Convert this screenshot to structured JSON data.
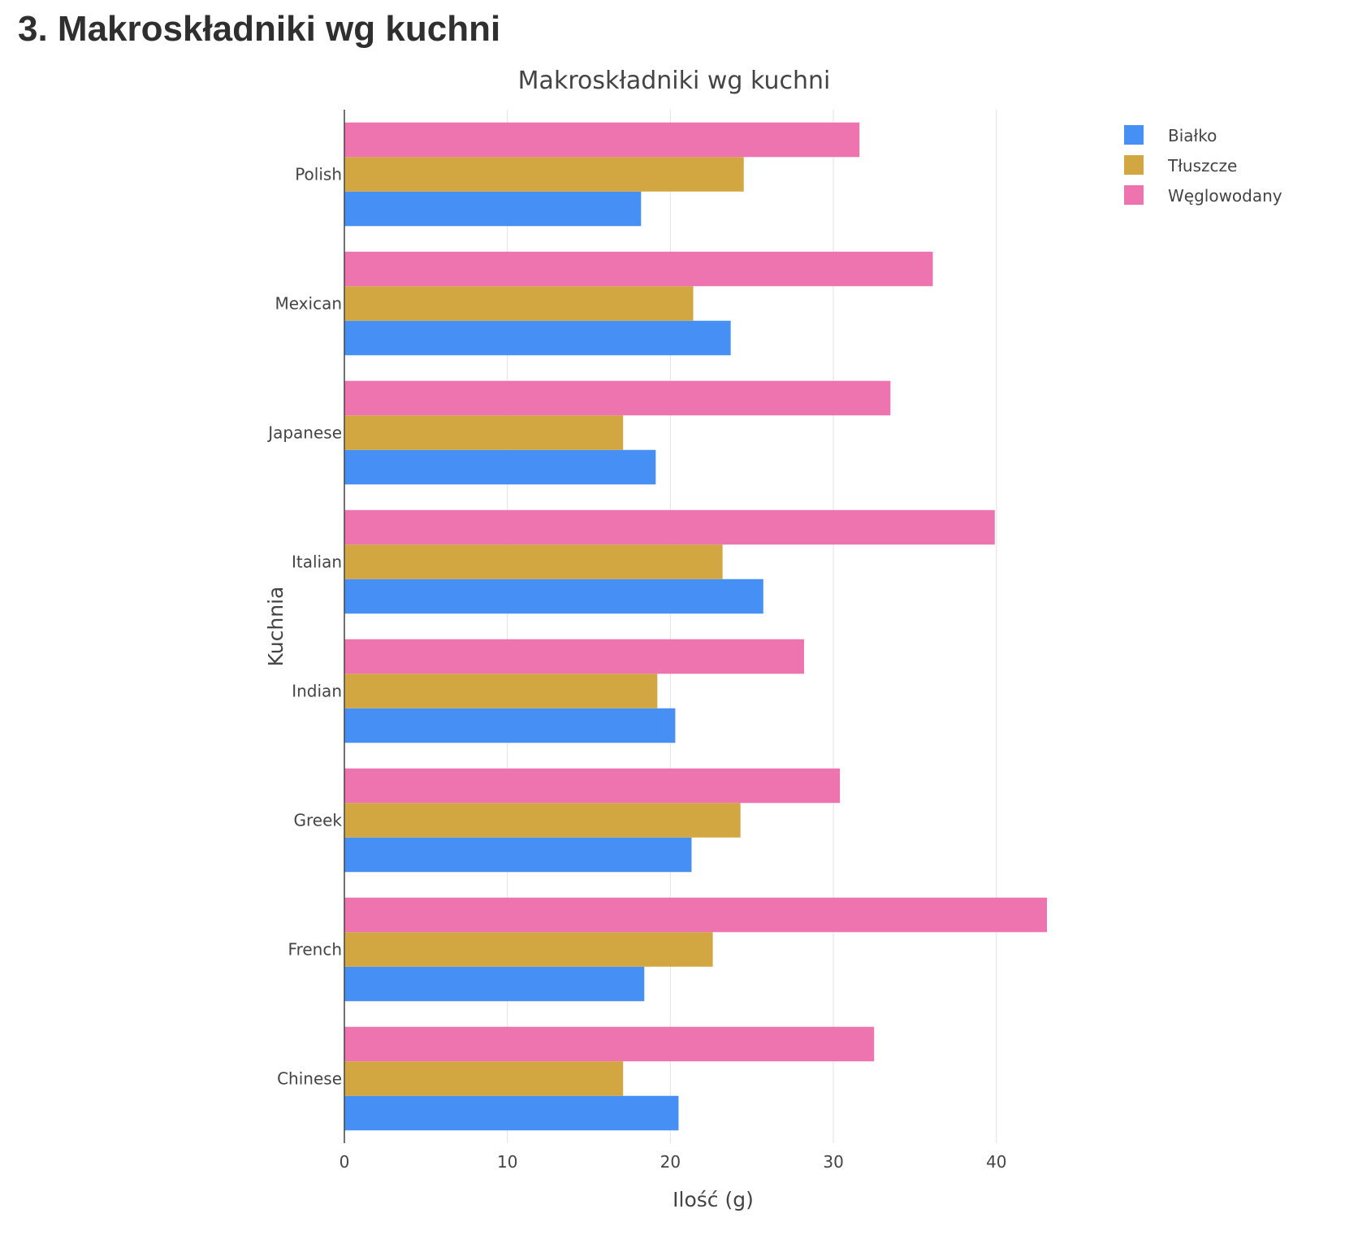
{
  "page": {
    "heading": "3. Makroskładniki wg kuchni"
  },
  "chart_data": {
    "type": "bar",
    "orientation": "horizontal",
    "barmode": "grouped",
    "title": "Makroskładniki wg kuchni",
    "xlabel": "Ilość (g)",
    "ylabel": "Kuchnia",
    "xlim": [
      0,
      50
    ],
    "xticks": [
      0,
      10,
      20,
      30,
      40
    ],
    "grid": true,
    "legend_position": "top-right",
    "categories": [
      "Chinese",
      "French",
      "Greek",
      "Indian",
      "Italian",
      "Japanese",
      "Mexican",
      "Polish"
    ],
    "series": [
      {
        "name": "Białko",
        "color": "#4690f5",
        "values": [
          20.5,
          18.4,
          21.3,
          20.3,
          25.7,
          19.1,
          23.7,
          18.2
        ]
      },
      {
        "name": "Tłuszcze",
        "color": "#d2a641",
        "values": [
          17.1,
          22.6,
          24.3,
          19.2,
          23.2,
          17.1,
          21.4,
          24.5
        ]
      },
      {
        "name": "Węglowodany",
        "color": "#ee74b0",
        "values": [
          32.5,
          43.1,
          30.4,
          28.2,
          39.9,
          33.5,
          36.1,
          31.6
        ]
      }
    ]
  }
}
